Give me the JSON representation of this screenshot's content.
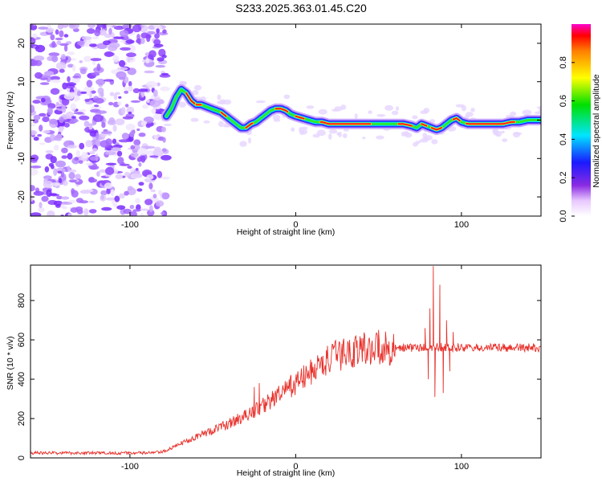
{
  "title": "S233.2025.363.01.45.C20",
  "chart_data": [
    {
      "type": "heatmap",
      "name": "spectrogram",
      "xlabel": "Height of straight line (km)",
      "ylabel": "Frequency (Hz)",
      "xlim": [
        -160,
        148
      ],
      "ylim": [
        -25,
        25
      ],
      "xticks": [
        -100,
        0,
        100
      ],
      "yticks": [
        -20,
        -10,
        0,
        10,
        20
      ],
      "x_noise_end_km": -78,
      "ridge_frequency_hz": {
        "x": [
          -78,
          -75,
          -72,
          -69,
          -66,
          -63,
          -60,
          -57,
          -54,
          -51,
          -48,
          -45,
          -42,
          -39,
          -36,
          -33,
          -30,
          -27,
          -24,
          -21,
          -18,
          -15,
          -12,
          -9,
          -6,
          -3,
          0,
          4,
          8,
          12,
          16,
          20,
          25,
          30,
          35,
          40,
          45,
          50,
          55,
          60,
          65,
          70,
          73,
          76,
          79,
          82,
          85,
          88,
          91,
          94,
          97,
          100,
          104,
          108,
          112,
          116,
          120,
          125,
          130,
          135,
          140,
          145,
          148
        ],
        "y": [
          1,
          3,
          6,
          8,
          7,
          5,
          4,
          4,
          3.5,
          3,
          2.5,
          2,
          1,
          0,
          -1,
          -2,
          -2,
          -1,
          -0.5,
          0.5,
          1.5,
          2.5,
          3,
          3,
          2.5,
          1.5,
          1,
          0.5,
          0,
          -0.5,
          -0.5,
          -1,
          -1,
          -1,
          -1,
          -1,
          -1,
          -1,
          -1,
          -1,
          -1,
          -1.5,
          -2,
          -1,
          -1.5,
          -2,
          -2.5,
          -2,
          -1,
          0,
          0.5,
          -0.5,
          -1,
          -1,
          -1,
          -1,
          -1,
          -1,
          -0.5,
          -0.5,
          0,
          0,
          0
        ]
      },
      "colorbar": {
        "label": "Normalized spectral amplitude",
        "range": [
          0,
          1
        ],
        "ticks": [
          "0.0",
          "0.2",
          "0.4",
          "0.6",
          "0.8"
        ],
        "tick_values": [
          0,
          0.2,
          0.4,
          0.6,
          0.8
        ]
      }
    },
    {
      "type": "line",
      "name": "snr",
      "xlabel": "Height of straight line (km)",
      "ylabel": "SNR (10 * v/v)",
      "xlim": [
        -160,
        148
      ],
      "ylim": [
        0,
        980
      ],
      "xticks": [
        -100,
        0,
        100
      ],
      "yticks": [
        0,
        200,
        400,
        600,
        800
      ],
      "color": "#e8302a",
      "trend": {
        "x": [
          -160,
          -120,
          -90,
          -80,
          -70,
          -60,
          -50,
          -40,
          -30,
          -20,
          -10,
          0,
          10,
          20,
          30,
          40,
          50,
          60,
          70,
          80,
          90,
          100,
          120,
          148
        ],
        "y": [
          25,
          25,
          25,
          30,
          70,
          110,
          140,
          175,
          215,
          265,
          320,
          380,
          440,
          500,
          535,
          555,
          560,
          560,
          560,
          560,
          560,
          560,
          560,
          560
        ]
      },
      "spikes": [
        {
          "x": 83,
          "y": 975
        },
        {
          "x": 84,
          "y": 310
        },
        {
          "x": 87,
          "y": 880
        },
        {
          "x": 89,
          "y": 330
        },
        {
          "x": 81,
          "y": 760
        },
        {
          "x": 80,
          "y": 400
        },
        {
          "x": 91,
          "y": 700
        },
        {
          "x": 93,
          "y": 440
        },
        {
          "x": 95,
          "y": 640
        },
        {
          "x": 78,
          "y": 660
        },
        {
          "x": 50,
          "y": 650
        },
        {
          "x": -25,
          "y": 360
        },
        {
          "x": -22,
          "y": 380
        }
      ]
    }
  ]
}
